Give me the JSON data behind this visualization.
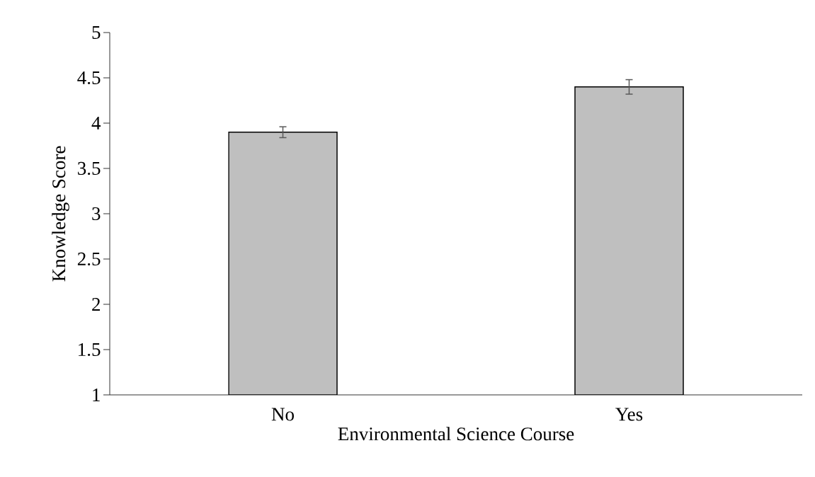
{
  "chart_data": {
    "type": "bar",
    "xlabel": "Environmental Science Course",
    "ylabel": "Knowledge Score",
    "categories": [
      "No",
      "Yes"
    ],
    "values": [
      3.9,
      4.4
    ],
    "errors": [
      0.06,
      0.08
    ],
    "color": "#bfbfbf",
    "ylim": [
      1,
      5
    ],
    "yticks": [
      1,
      1.5,
      2,
      2.5,
      3,
      3.5,
      4,
      4.5,
      5
    ],
    "grid": false
  }
}
